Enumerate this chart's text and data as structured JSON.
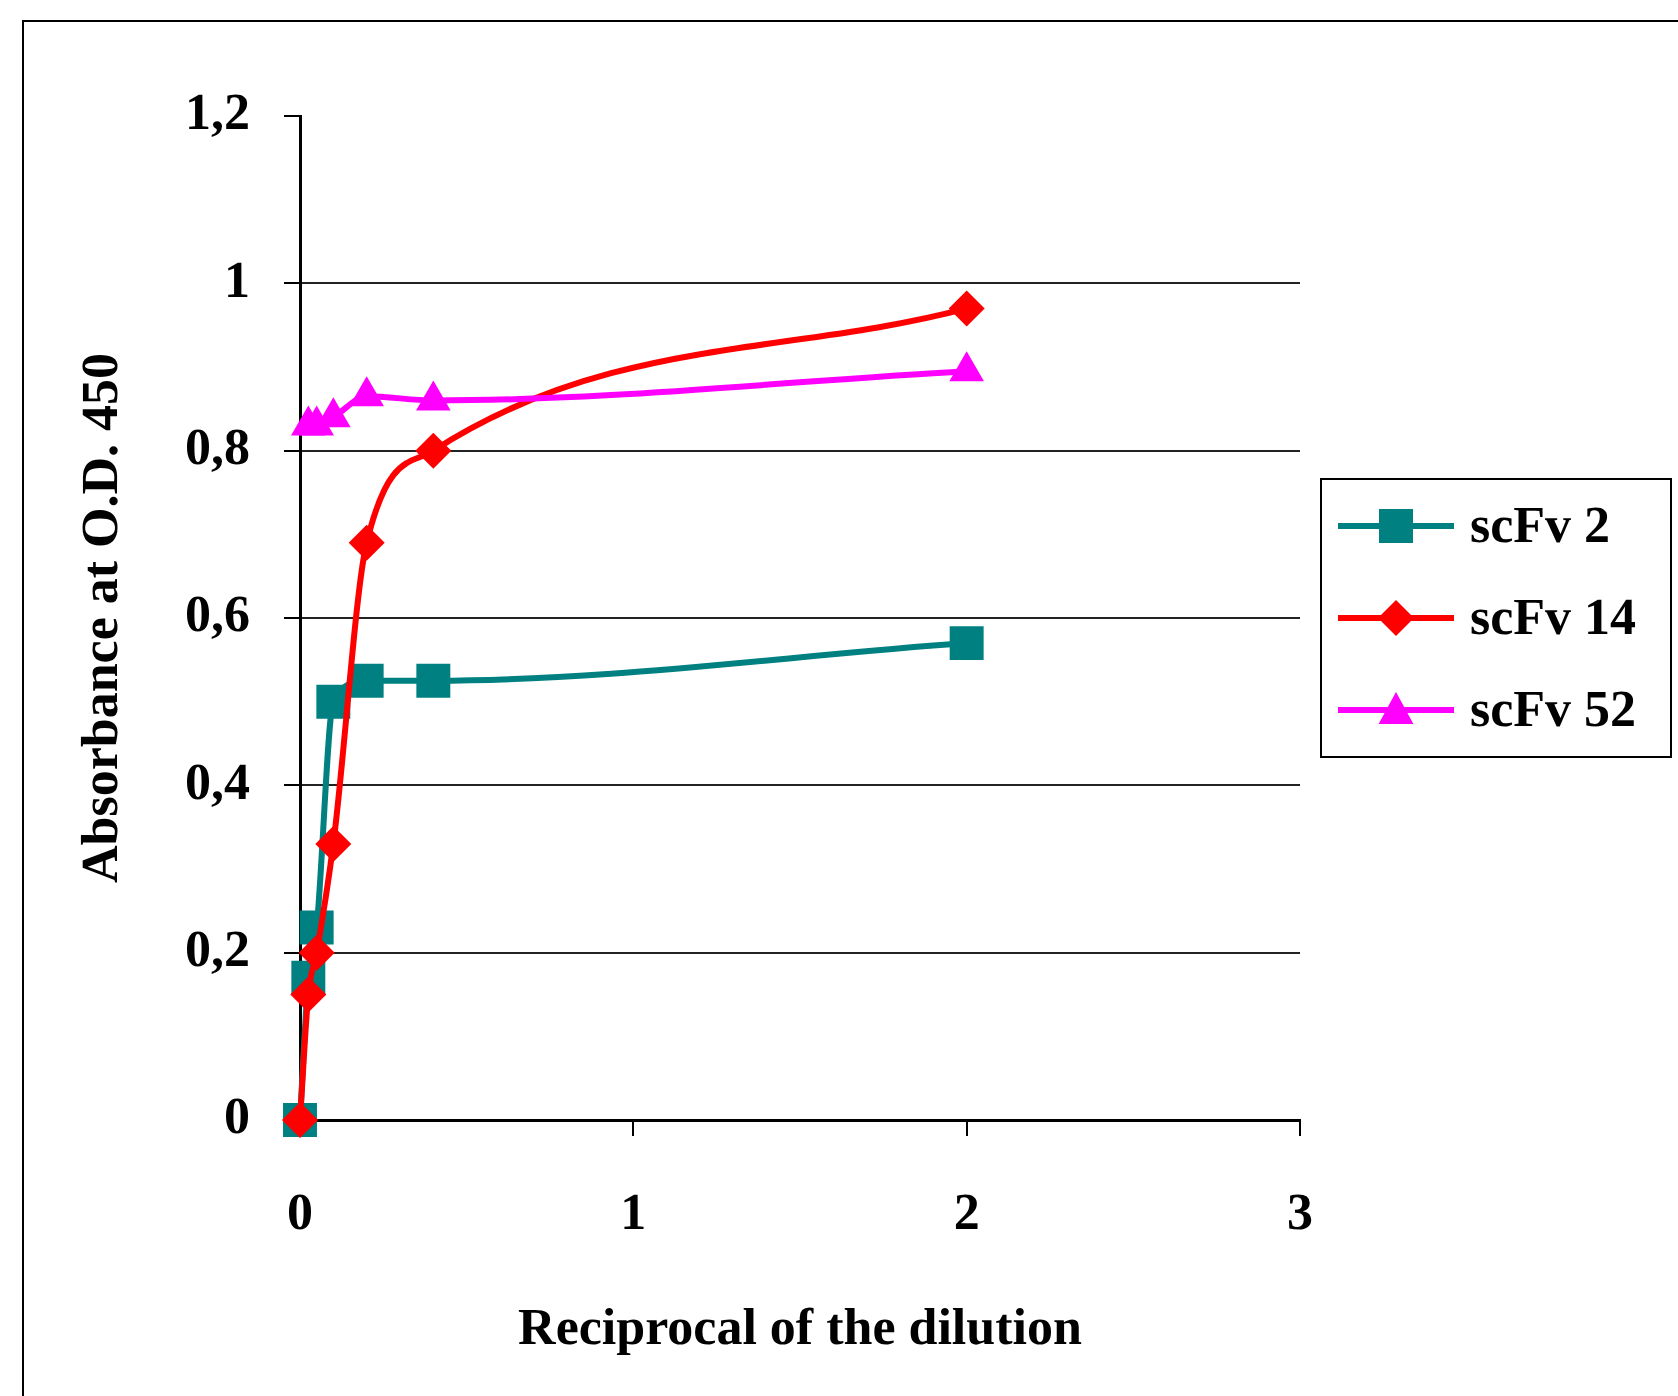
{
  "chart_data": {
    "type": "line",
    "xlabel": "Reciprocal of the dilution",
    "ylabel": "Absorbance at O.D. 450",
    "xlim": [
      0,
      3
    ],
    "xticks": [
      0,
      1,
      2,
      3
    ],
    "ylim": [
      0,
      1.2
    ],
    "yticks": [
      0,
      {
        "value": 0.2,
        "label": "0,2"
      },
      {
        "value": 0.4,
        "label": "0,4"
      },
      {
        "value": 0.6,
        "label": "0,6"
      },
      {
        "value": 0.8,
        "label": "0,8"
      },
      1,
      {
        "value": 1.2,
        "label": "1,2"
      }
    ],
    "grid": "y",
    "legend": "right",
    "series": [
      {
        "name": "scFv 2",
        "color": "#008080",
        "marker": "square",
        "x": [
          0,
          0.025,
          0.05,
          0.1,
          0.2,
          0.4,
          2
        ],
        "values": [
          0,
          0.17,
          0.23,
          0.5,
          0.525,
          0.525,
          0.57
        ]
      },
      {
        "name": "scFv 14",
        "color": "#ff0000",
        "marker": "diamond",
        "x": [
          0,
          0.025,
          0.05,
          0.1,
          0.2,
          0.4,
          2
        ],
        "values": [
          0,
          0.15,
          0.2,
          0.33,
          0.69,
          0.8,
          0.97
        ]
      },
      {
        "name": "scFv 52",
        "color": "#ff00ff",
        "marker": "triangle",
        "x": [
          0.025,
          0.05,
          0.1,
          0.2,
          0.4,
          2
        ],
        "values": [
          0.83,
          0.83,
          0.84,
          0.865,
          0.86,
          0.895
        ]
      }
    ]
  }
}
